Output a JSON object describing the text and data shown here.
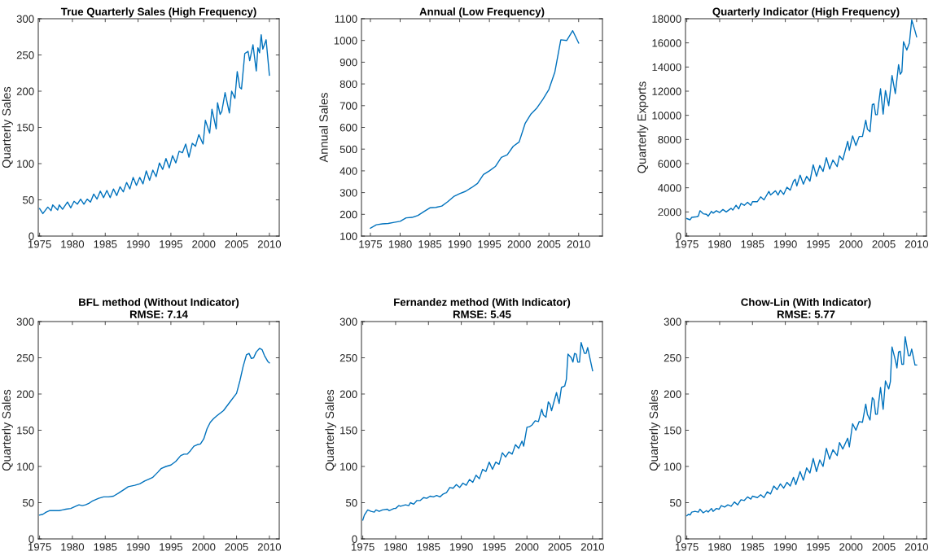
{
  "chart_data": [
    {
      "type": "line",
      "title": "True Quarterly Sales (High Frequency)",
      "ylabel": "Quarterly Sales",
      "xlim": [
        1974.8,
        2011.5
      ],
      "ylim": [
        0,
        300
      ],
      "xticks": [
        1975,
        1980,
        1985,
        1990,
        1995,
        2000,
        2005,
        2010
      ],
      "yticks": [
        0,
        50,
        100,
        150,
        200,
        250,
        300
      ],
      "series": [
        {
          "color": "#0072bd",
          "x": [
            1975,
            1975.5,
            1976.25,
            1976.75,
            1977.0,
            1977.75,
            1978.0,
            1978.5,
            1979.25,
            1979.75,
            1980.25,
            1980.75,
            1981.25,
            1981.75,
            1982.25,
            1982.75,
            1983.25,
            1983.75,
            1984.25,
            1984.75,
            1985.25,
            1985.75,
            1986.25,
            1986.75,
            1987.25,
            1987.75,
            1988.25,
            1988.75,
            1989.25,
            1989.75,
            1990.25,
            1990.75,
            1991.25,
            1991.75,
            1992.25,
            1992.75,
            1993.25,
            1993.75,
            1994.25,
            1994.75,
            1995.25,
            1995.75,
            1996.25,
            1996.75,
            1997.25,
            1997.75,
            1998.25,
            1998.75,
            1999.25,
            1999.9,
            2000.25,
            2000.9,
            2001.25,
            2001.9,
            2002.1,
            2002.5,
            2002.75,
            2003.25,
            2003.9,
            2004.25,
            2004.75,
            2005.1,
            2005.5,
            2005.75,
            2006.25,
            2006.75,
            2007.0,
            2007.5,
            2008.0,
            2008.25,
            2008.5,
            2008.75,
            2009.0,
            2009.5,
            2010.0
          ],
          "values": [
            38,
            31,
            40,
            35,
            43,
            36,
            43,
            37,
            47,
            39,
            48,
            44,
            51,
            44,
            51,
            47,
            58,
            51,
            62,
            53,
            63,
            53,
            65,
            56,
            68,
            61,
            74,
            65,
            81,
            70,
            81,
            72,
            90,
            77,
            91,
            82,
            101,
            92,
            107,
            94,
            111,
            101,
            117,
            115,
            127,
            109,
            128,
            124,
            140,
            127,
            160,
            142,
            175,
            148,
            184,
            168,
            172,
            198,
            170,
            200,
            190,
            227,
            205,
            203,
            252,
            255,
            242,
            264,
            228,
            260,
            253,
            278,
            258,
            271,
            222
          ]
        }
      ]
    },
    {
      "type": "line",
      "title": "Annual (Low Frequency)",
      "ylabel": "Annual Sales",
      "xlim": [
        1973.5,
        2014
      ],
      "ylim": [
        100,
        1100
      ],
      "xticks": [
        1975,
        1980,
        1985,
        1990,
        1995,
        2000,
        2005,
        2010
      ],
      "yticks": [
        100,
        200,
        300,
        400,
        500,
        600,
        700,
        800,
        900,
        1000,
        1100
      ],
      "series": [
        {
          "color": "#0072bd",
          "x": [
            1975,
            1976,
            1977,
            1978,
            1979,
            1980,
            1981,
            1982,
            1983,
            1984,
            1985,
            1986,
            1987,
            1988,
            1989,
            1990,
            1991,
            1992,
            1993,
            1994,
            1995,
            1996,
            1997,
            1998,
            1999,
            2000,
            2001,
            2002,
            2003,
            2004,
            2005,
            2006,
            2007,
            2008,
            2009,
            2010
          ],
          "values": [
            136,
            152,
            156,
            158,
            163,
            168,
            184,
            186,
            195,
            213,
            230,
            232,
            238,
            258,
            282,
            295,
            306,
            323,
            342,
            383,
            400,
            420,
            462,
            474,
            513,
            533,
            618,
            662,
            690,
            730,
            775,
            855,
            1003,
            1000,
            1045,
            988
          ]
        }
      ]
    },
    {
      "type": "line",
      "title": "Quarterly Indicator (High Frequency)",
      "ylabel": "Quarterly Exports",
      "xlim": [
        1974.8,
        2011.5
      ],
      "ylim": [
        0,
        18000
      ],
      "xticks": [
        1975,
        1980,
        1985,
        1990,
        1995,
        2000,
        2005,
        2010
      ],
      "yticks": [
        0,
        2000,
        4000,
        6000,
        8000,
        10000,
        12000,
        14000,
        16000,
        18000
      ],
      "series": [
        {
          "color": "#0072bd",
          "x": [
            1975,
            1975.5,
            1975.75,
            1976.5,
            1976.75,
            1977.0,
            1977.5,
            1978.0,
            1978.25,
            1978.75,
            1979.0,
            1979.5,
            1980.0,
            1980.5,
            1981.0,
            1981.75,
            1982.0,
            1982.5,
            1982.9,
            1983.25,
            1983.75,
            1984.25,
            1984.75,
            1985.0,
            1985.75,
            1986.25,
            1986.75,
            1987.5,
            1987.75,
            1988.5,
            1988.9,
            1989.25,
            1989.75,
            1990.25,
            1990.75,
            1991.25,
            1991.5,
            1991.75,
            1992.25,
            1992.75,
            1993.25,
            1993.75,
            1994.25,
            1994.75,
            1995.25,
            1995.75,
            1996.25,
            1996.75,
            1997.25,
            1997.9,
            1998.25,
            1998.75,
            1999.5,
            1999.75,
            2000.25,
            2000.75,
            2001.25,
            2001.75,
            2002.25,
            2002.5,
            2002.9,
            2003.25,
            2003.5,
            2003.75,
            2004.0,
            2004.5,
            2004.9,
            2005.25,
            2005.75,
            2006.25,
            2006.75,
            2007.25,
            2007.5,
            2007.75,
            2008.0,
            2008.5,
            2008.9,
            2009.25,
            2009.75,
            2010.0
          ],
          "values": [
            1450,
            1350,
            1550,
            1600,
            1650,
            2100,
            1850,
            1800,
            1650,
            2050,
            1900,
            2100,
            1950,
            2200,
            2000,
            2300,
            2150,
            2550,
            2250,
            2700,
            2550,
            2800,
            2550,
            2850,
            2850,
            3250,
            3000,
            3700,
            3400,
            3750,
            3400,
            3800,
            3450,
            4050,
            3800,
            4550,
            4700,
            4150,
            5050,
            4300,
            4950,
            4550,
            5900,
            4950,
            5850,
            5350,
            6500,
            5550,
            6300,
            5750,
            6650,
            6300,
            7850,
            7100,
            8300,
            7500,
            8250,
            8250,
            9600,
            8850,
            8650,
            10900,
            10950,
            10050,
            10050,
            12200,
            10100,
            12050,
            10800,
            13300,
            11800,
            14200,
            13400,
            13600,
            16100,
            15400,
            16000,
            17900,
            17000,
            16500
          ]
        }
      ]
    },
    {
      "type": "line",
      "title": "BFL method (Without Indicator)",
      "subtitle": "RMSE: 7.14",
      "ylabel": "Quarterly Sales",
      "xlim": [
        1974.8,
        2011.5
      ],
      "ylim": [
        0,
        300
      ],
      "xticks": [
        1975,
        1980,
        1985,
        1990,
        1995,
        2000,
        2005,
        2010
      ],
      "yticks": [
        0,
        50,
        100,
        150,
        200,
        250,
        300
      ],
      "series": [
        {
          "color": "#0072bd",
          "x": [
            1975,
            1975.5,
            1976,
            1976.5,
            1977,
            1978,
            1978.5,
            1979,
            1979.75,
            1980.5,
            1981,
            1981.5,
            1982,
            1982.5,
            1983,
            1984,
            1984.75,
            1985.5,
            1986.25,
            1987,
            1988,
            1988.5,
            1989.5,
            1990.25,
            1991,
            1991.5,
            1992.25,
            1993,
            1993.5,
            1994.25,
            1995,
            1995.75,
            1996.5,
            1997,
            1997.5,
            1998,
            1998.5,
            1999,
            1999.5,
            2000,
            2000.5,
            2001,
            2001.5,
            2002,
            2003,
            2004,
            2005,
            2005.5,
            2006,
            2006.5,
            2006.9,
            2007.25,
            2007.6,
            2008,
            2008.5,
            2008.9,
            2009.25,
            2009.75,
            2010
          ],
          "values": [
            33,
            34,
            37,
            39,
            39,
            39,
            40,
            41,
            42,
            45,
            47,
            46,
            47,
            49,
            52,
            56,
            58,
            58,
            59,
            63,
            69,
            72,
            74,
            76,
            80,
            82,
            85,
            92,
            97,
            100,
            102,
            107,
            115,
            117,
            117,
            122,
            128,
            130,
            131,
            138,
            152,
            161,
            166,
            170,
            177,
            189,
            201,
            218,
            238,
            254,
            256,
            249,
            250,
            258,
            263,
            261,
            253,
            245,
            243
          ]
        }
      ]
    },
    {
      "type": "line",
      "title": "Fernandez method (With Indicator)",
      "subtitle": "RMSE: 5.45",
      "ylabel": "Quarterly Sales",
      "xlim": [
        1974.8,
        2011.5
      ],
      "ylim": [
        0,
        300
      ],
      "xticks": [
        1975,
        1980,
        1985,
        1990,
        1995,
        2000,
        2005,
        2010
      ],
      "yticks": [
        0,
        50,
        100,
        150,
        200,
        250,
        300
      ],
      "series": [
        {
          "color": "#0072bd",
          "x": [
            1975,
            1975.25,
            1975.75,
            1976.25,
            1976.75,
            1977,
            1977.5,
            1978,
            1978.75,
            1979,
            1979.75,
            1980,
            1980.5,
            1980.75,
            1981.5,
            1982,
            1982.25,
            1982.75,
            1983.25,
            1983.75,
            1984.25,
            1984.75,
            1985.25,
            1985.75,
            1986.25,
            1986.75,
            1987.25,
            1987.75,
            1988.25,
            1988.75,
            1989.25,
            1989.75,
            1990.25,
            1990.75,
            1991.25,
            1991.75,
            1992.25,
            1992.75,
            1993.25,
            1993.75,
            1994.25,
            1994.75,
            1995.25,
            1995.75,
            1996.25,
            1996.75,
            1997.25,
            1997.75,
            1998.25,
            1998.75,
            1999.25,
            1999.5,
            2000,
            2000.4,
            2000.75,
            2001.25,
            2001.75,
            2002.25,
            2002.5,
            2002.9,
            2003.25,
            2003.5,
            2003.75,
            2004.5,
            2004.9,
            2005.25,
            2005.75,
            2006.0,
            2006.25,
            2006.75,
            2007.0,
            2007.25,
            2007.5,
            2007.75,
            2008.0,
            2008.25,
            2008.75,
            2009.0,
            2009.25,
            2010.0
          ],
          "values": [
            26,
            33,
            40,
            38,
            37,
            40,
            38,
            40,
            41,
            39,
            42,
            42,
            46,
            45,
            47,
            46,
            50,
            48,
            53,
            53,
            57,
            56,
            59,
            58,
            60,
            58,
            62,
            64,
            71,
            70,
            75,
            71,
            77,
            74,
            82,
            78,
            88,
            83,
            96,
            93,
            106,
            96,
            106,
            103,
            119,
            113,
            120,
            117,
            130,
            125,
            135,
            128,
            154,
            155,
            157,
            163,
            162,
            179,
            171,
            168,
            189,
            186,
            177,
            202,
            187,
            209,
            211,
            220,
            255,
            250,
            244,
            256,
            255,
            244,
            244,
            271,
            256,
            256,
            264,
            232
          ]
        }
      ]
    },
    {
      "type": "line",
      "title": "Chow-Lin (With Indicator)",
      "subtitle": "RMSE: 5.77",
      "ylabel": "Quarterly Sales",
      "xlim": [
        1974.8,
        2011.5
      ],
      "ylim": [
        0,
        300
      ],
      "xticks": [
        1975,
        1980,
        1985,
        1990,
        1995,
        2000,
        2005,
        2010
      ],
      "yticks": [
        0,
        50,
        100,
        150,
        200,
        250,
        300
      ],
      "series": [
        {
          "color": "#0072bd",
          "x": [
            1975,
            1975.25,
            1975.5,
            1975.75,
            1976.25,
            1976.75,
            1977.0,
            1977.5,
            1978.0,
            1978.25,
            1978.75,
            1979.0,
            1979.5,
            1979.9,
            1980.25,
            1980.75,
            1981.25,
            1981.75,
            1982.25,
            1982.75,
            1983.25,
            1983.75,
            1984.25,
            1984.75,
            1985.0,
            1985.75,
            1986.25,
            1986.75,
            1987.25,
            1987.75,
            1988.25,
            1988.75,
            1989.25,
            1989.75,
            1990.25,
            1990.75,
            1991.25,
            1991.6,
            1992.25,
            1992.75,
            1993.25,
            1993.75,
            1994.25,
            1994.75,
            1995.25,
            1995.75,
            1996.25,
            1996.75,
            1997.25,
            1997.9,
            1998.25,
            1998.75,
            1999.5,
            1999.75,
            2000.25,
            2000.75,
            2001.25,
            2001.75,
            2002.25,
            2002.5,
            2002.9,
            2003.25,
            2003.5,
            2003.75,
            2004.0,
            2004.5,
            2004.9,
            2005.25,
            2005.75,
            2006.0,
            2006.25,
            2006.75,
            2007.0,
            2007.25,
            2007.5,
            2007.75,
            2008.0,
            2008.25,
            2008.75,
            2009.0,
            2009.25,
            2009.75,
            2010.0
          ],
          "values": [
            32,
            34,
            33,
            37,
            38,
            37,
            41,
            36,
            39,
            37,
            42,
            38,
            42,
            41,
            46,
            44,
            47,
            45,
            51,
            47,
            54,
            53,
            58,
            55,
            59,
            57,
            61,
            57,
            65,
            62,
            73,
            68,
            76,
            70,
            78,
            73,
            85,
            75,
            93,
            81,
            98,
            91,
            111,
            93,
            109,
            100,
            125,
            110,
            123,
            115,
            133,
            124,
            139,
            127,
            159,
            150,
            162,
            161,
            186,
            172,
            164,
            195,
            192,
            172,
            172,
            209,
            179,
            218,
            207,
            217,
            265,
            247,
            236,
            258,
            259,
            241,
            241,
            279,
            253,
            253,
            262,
            240,
            240
          ]
        }
      ]
    }
  ]
}
